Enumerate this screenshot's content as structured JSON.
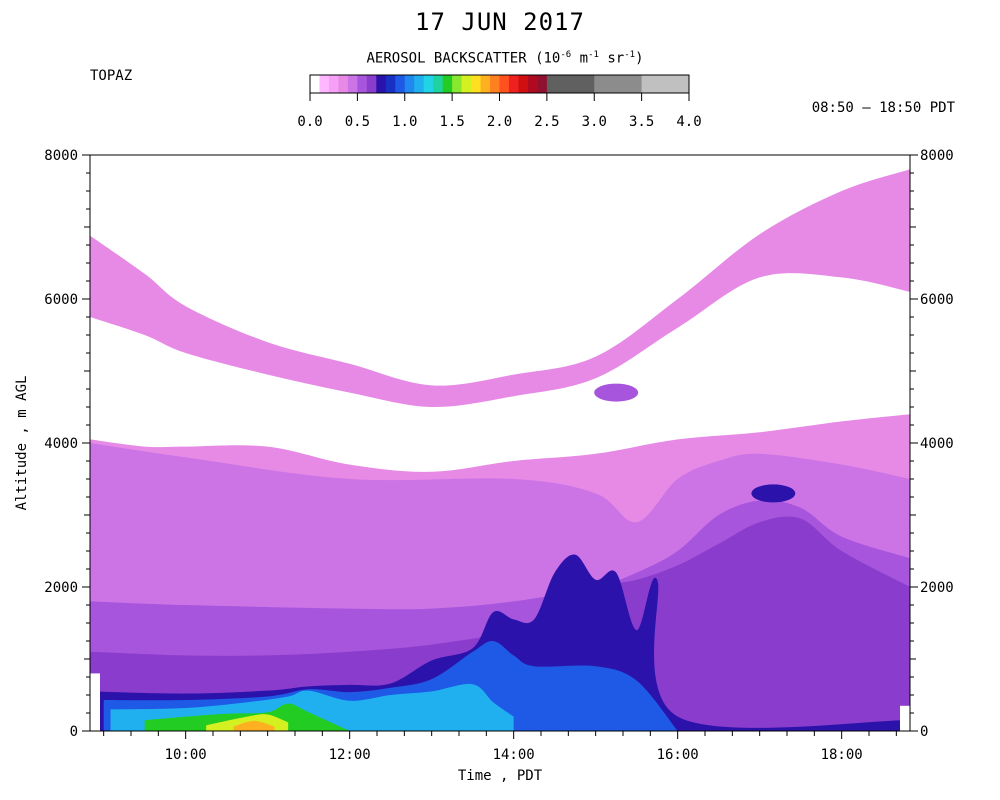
{
  "title": "17 JUN 2017",
  "site": "TOPAZ",
  "time_range": "08:50 – 18:50 PDT",
  "colorbar": {
    "label": "AEROSOL BACKSCATTER (10",
    "label_exp1": "-6",
    "label_unit1": " m",
    "label_exp2": "-1",
    "label_unit2": " sr",
    "label_exp3": "-1",
    "label_close": ")",
    "ticks": [
      "0.0",
      "0.5",
      "1.0",
      "1.5",
      "2.0",
      "2.5",
      "3.0",
      "3.5",
      "4.0"
    ],
    "bins": [
      {
        "from": 0.0,
        "to": 0.1,
        "color": "#ffffff"
      },
      {
        "from": 0.1,
        "to": 0.2,
        "color": "#ffb8ff"
      },
      {
        "from": 0.2,
        "to": 0.3,
        "color": "#f7a0f7"
      },
      {
        "from": 0.3,
        "to": 0.4,
        "color": "#e68ae6"
      },
      {
        "from": 0.4,
        "to": 0.5,
        "color": "#cc73e6"
      },
      {
        "from": 0.5,
        "to": 0.6,
        "color": "#a855dd"
      },
      {
        "from": 0.6,
        "to": 0.7,
        "color": "#8a3ccc"
      },
      {
        "from": 0.7,
        "to": 0.8,
        "color": "#2a12aa"
      },
      {
        "from": 0.8,
        "to": 0.9,
        "color": "#1930c4"
      },
      {
        "from": 0.9,
        "to": 1.0,
        "color": "#1e5ae6"
      },
      {
        "from": 1.0,
        "to": 1.1,
        "color": "#2088f0"
      },
      {
        "from": 1.1,
        "to": 1.2,
        "color": "#20b0f0"
      },
      {
        "from": 1.2,
        "to": 1.3,
        "color": "#20d4e6"
      },
      {
        "from": 1.3,
        "to": 1.4,
        "color": "#20d2a0"
      },
      {
        "from": 1.4,
        "to": 1.5,
        "color": "#22cc22"
      },
      {
        "from": 1.5,
        "to": 1.6,
        "color": "#88e830"
      },
      {
        "from": 1.6,
        "to": 1.7,
        "color": "#d4f020"
      },
      {
        "from": 1.7,
        "to": 1.8,
        "color": "#ffe020"
      },
      {
        "from": 1.8,
        "to": 1.9,
        "color": "#ffb020"
      },
      {
        "from": 1.9,
        "to": 2.0,
        "color": "#ff8020"
      },
      {
        "from": 2.0,
        "to": 2.1,
        "color": "#ff5020"
      },
      {
        "from": 2.1,
        "to": 2.2,
        "color": "#ee2020"
      },
      {
        "from": 2.2,
        "to": 2.3,
        "color": "#d01010"
      },
      {
        "from": 2.3,
        "to": 2.4,
        "color": "#b00a20"
      },
      {
        "from": 2.4,
        "to": 2.5,
        "color": "#901030"
      },
      {
        "from": 2.5,
        "to": 3.0,
        "color": "#606060"
      },
      {
        "from": 3.0,
        "to": 3.5,
        "color": "#8c8c8c"
      },
      {
        "from": 3.5,
        "to": 4.0,
        "color": "#c0c0c0"
      }
    ]
  },
  "chart_data": {
    "type": "heatmap",
    "title": "17 JUN 2017",
    "xlabel": "Time , PDT",
    "ylabel": "Altitude , m AGL",
    "xlim": [
      "08:50",
      "18:50"
    ],
    "ylim": [
      0,
      8000
    ],
    "x_ticks": [
      "10:00",
      "12:00",
      "14:00",
      "16:00",
      "18:00"
    ],
    "y_ticks": [
      "0",
      "2000",
      "4000",
      "6000",
      "8000"
    ],
    "colorscale_range": [
      0.0,
      4.0
    ],
    "layers": [
      {
        "level": 0.3,
        "color": "#e68ae6",
        "top": [
          [
            "08:50",
            6880
          ],
          [
            "09:30",
            6350
          ],
          [
            "10:00",
            5900
          ],
          [
            "11:00",
            5400
          ],
          [
            "12:00",
            5100
          ],
          [
            "13:00",
            4800
          ],
          [
            "14:00",
            4950
          ],
          [
            "15:00",
            5200
          ],
          [
            "16:00",
            6000
          ],
          [
            "17:00",
            6900
          ],
          [
            "18:00",
            7500
          ],
          [
            "18:50",
            7800
          ]
        ]
      },
      {
        "level": 0.0,
        "color": "#ffffff",
        "top": [
          [
            "08:50",
            5750
          ],
          [
            "09:30",
            5500
          ],
          [
            "10:00",
            5250
          ],
          [
            "11:00",
            4950
          ],
          [
            "12:00",
            4700
          ],
          [
            "13:00",
            4500
          ],
          [
            "14:00",
            4650
          ],
          [
            "15:00",
            4900
          ],
          [
            "16:00",
            5600
          ],
          [
            "17:00",
            6300
          ],
          [
            "18:00",
            6300
          ],
          [
            "18:50",
            6100
          ]
        ],
        "bottom": [
          [
            "08:50",
            4050
          ],
          [
            "09:30",
            3950
          ],
          [
            "10:00",
            3950
          ],
          [
            "11:00",
            3950
          ],
          [
            "12:00",
            3700
          ],
          [
            "13:00",
            3600
          ],
          [
            "14:00",
            3750
          ],
          [
            "15:00",
            3850
          ],
          [
            "16:00",
            4050
          ],
          [
            "17:00",
            4150
          ],
          [
            "18:00",
            4300
          ],
          [
            "18:50",
            4400
          ]
        ]
      },
      {
        "level": 0.45,
        "color": "#cc73e6",
        "top": [
          [
            "08:50",
            4000
          ],
          [
            "10:00",
            3800
          ],
          [
            "12:00",
            3500
          ],
          [
            "14:00",
            3500
          ],
          [
            "15:00",
            3300
          ],
          [
            "15:30",
            2900
          ],
          [
            "16:00",
            3500
          ],
          [
            "16:30",
            3750
          ],
          [
            "17:00",
            3850
          ],
          [
            "18:00",
            3700
          ],
          [
            "18:50",
            3500
          ]
        ]
      },
      {
        "level": 0.55,
        "color": "#a855dd",
        "top": [
          [
            "08:50",
            1800
          ],
          [
            "10:00",
            1750
          ],
          [
            "12:00",
            1700
          ],
          [
            "13:00",
            1700
          ],
          [
            "14:00",
            1800
          ],
          [
            "15:00",
            2000
          ],
          [
            "15:30",
            2200
          ],
          [
            "16:00",
            2500
          ],
          [
            "16:30",
            3000
          ],
          [
            "17:00",
            3200
          ],
          [
            "17:30",
            3100
          ],
          [
            "18:00",
            2700
          ],
          [
            "18:50",
            2400
          ]
        ]
      },
      {
        "level": 0.65,
        "color": "#8a3ccc",
        "top": [
          [
            "08:50",
            1100
          ],
          [
            "10:00",
            1050
          ],
          [
            "11:00",
            1050
          ],
          [
            "12:00",
            1100
          ],
          [
            "13:00",
            1200
          ],
          [
            "14:00",
            1400
          ],
          [
            "14:30",
            1700
          ],
          [
            "15:00",
            2000
          ],
          [
            "15:30",
            2100
          ],
          [
            "16:00",
            2300
          ],
          [
            "16:30",
            2600
          ],
          [
            "17:00",
            2900
          ],
          [
            "17:30",
            2950
          ],
          [
            "18:00",
            2500
          ],
          [
            "18:50",
            2000
          ]
        ]
      },
      {
        "level": 0.75,
        "color": "#2a12aa",
        "top": [
          [
            "08:50",
            550
          ],
          [
            "10:00",
            520
          ],
          [
            "11:00",
            560
          ],
          [
            "11:30",
            620
          ],
          [
            "12:00",
            640
          ],
          [
            "12:30",
            660
          ],
          [
            "13:00",
            980
          ],
          [
            "13:30",
            1150
          ],
          [
            "13:45",
            1650
          ],
          [
            "14:00",
            1550
          ],
          [
            "14:15",
            1550
          ],
          [
            "14:30",
            2200
          ],
          [
            "14:45",
            2450
          ],
          [
            "15:00",
            2100
          ],
          [
            "15:15",
            2200
          ],
          [
            "15:30",
            1400
          ],
          [
            "15:45",
            2100
          ],
          [
            "16:00",
            200
          ],
          [
            "18:50",
            150
          ]
        ]
      },
      {
        "level": 0.95,
        "color": "#1e5ae6",
        "top": [
          [
            "09:00",
            430
          ],
          [
            "10:00",
            430
          ],
          [
            "11:00",
            480
          ],
          [
            "11:30",
            580
          ],
          [
            "12:00",
            540
          ],
          [
            "12:30",
            600
          ],
          [
            "13:00",
            720
          ],
          [
            "13:30",
            1100
          ],
          [
            "13:45",
            1250
          ],
          [
            "14:00",
            1050
          ],
          [
            "14:15",
            900
          ],
          [
            "15:00",
            900
          ],
          [
            "15:30",
            700
          ],
          [
            "16:00",
            0
          ]
        ]
      },
      {
        "level": 1.15,
        "color": "#20b0f0",
        "top": [
          [
            "09:05",
            300
          ],
          [
            "10:00",
            320
          ],
          [
            "10:45",
            400
          ],
          [
            "11:15",
            480
          ],
          [
            "11:30",
            560
          ],
          [
            "12:00",
            420
          ],
          [
            "12:30",
            500
          ],
          [
            "13:00",
            550
          ],
          [
            "13:30",
            650
          ],
          [
            "13:45",
            400
          ],
          [
            "14:00",
            200
          ]
        ]
      },
      {
        "level": 1.45,
        "color": "#22cc22",
        "top": [
          [
            "09:30",
            150
          ],
          [
            "10:00",
            200
          ],
          [
            "10:30",
            240
          ],
          [
            "11:00",
            260
          ],
          [
            "11:15",
            380
          ],
          [
            "11:30",
            260
          ],
          [
            "12:00",
            0
          ]
        ]
      },
      {
        "level": 1.65,
        "color": "#d4f020",
        "top": [
          [
            "10:15",
            80
          ],
          [
            "10:45",
            200
          ],
          [
            "11:00",
            230
          ],
          [
            "11:15",
            120
          ]
        ]
      },
      {
        "level": 1.85,
        "color": "#ffb020",
        "top": [
          [
            "10:35",
            60
          ],
          [
            "10:50",
            140
          ],
          [
            "11:05",
            60
          ]
        ]
      }
    ],
    "features": [
      {
        "label": "aerosol layer near 3300 m",
        "time": "17:10",
        "altitude": 3300,
        "level": 0.75
      },
      {
        "label": "dark patch near 4700 m",
        "time": "15:15",
        "altitude": 4700,
        "level": 0.55
      }
    ]
  }
}
